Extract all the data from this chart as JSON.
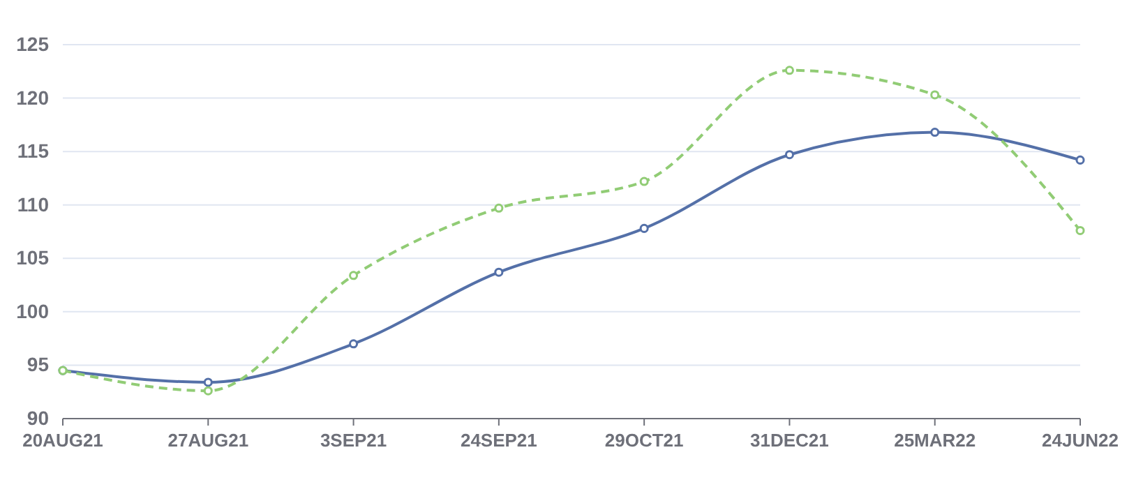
{
  "chart_data": {
    "type": "line",
    "categories": [
      "20AUG21",
      "27AUG21",
      "3SEP21",
      "24SEP21",
      "29OCT21",
      "31DEC21",
      "25MAR22",
      "24JUN22"
    ],
    "series": [
      {
        "color": "#5470a8",
        "line_style": "solid",
        "values": [
          94.5,
          93.4,
          97.0,
          103.7,
          107.8,
          114.7,
          116.8,
          114.2
        ]
      },
      {
        "color": "#91cc75",
        "line_style": "dashed",
        "values": [
          94.5,
          92.6,
          103.4,
          109.7,
          112.2,
          122.6,
          120.3,
          107.6
        ]
      }
    ],
    "ylim": [
      90,
      125
    ],
    "yticks": [
      90,
      95,
      100,
      105,
      110,
      115,
      120,
      125
    ],
    "grid": "y",
    "marker": "circle"
  }
}
